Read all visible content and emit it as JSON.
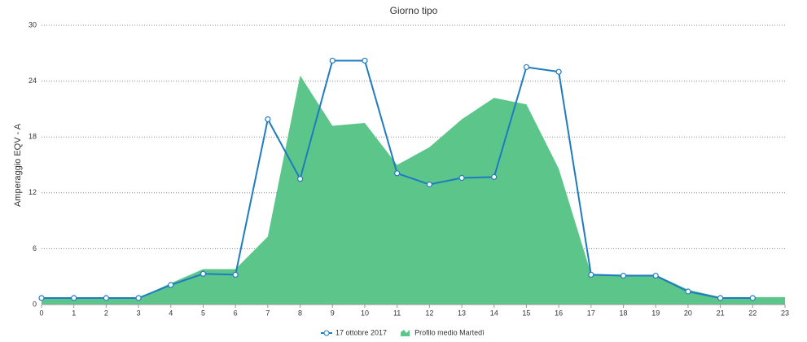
{
  "chart_data": {
    "type": "line-area",
    "title": "Giorno tipo",
    "y_label": "Amperaggio EQV - A",
    "x": [
      0,
      1,
      2,
      3,
      4,
      5,
      6,
      7,
      8,
      9,
      10,
      11,
      12,
      13,
      14,
      15,
      16,
      17,
      18,
      19,
      20,
      21,
      22,
      23
    ],
    "xlim": [
      0,
      23
    ],
    "xticks": [
      0,
      1,
      2,
      3,
      4,
      5,
      6,
      7,
      8,
      9,
      10,
      11,
      12,
      13,
      14,
      15,
      16,
      17,
      18,
      19,
      20,
      21,
      22,
      23
    ],
    "ylim": [
      0,
      30
    ],
    "yticks": [
      0,
      6,
      12,
      18,
      24,
      30
    ],
    "grid": true,
    "legend": "bottom",
    "series": [
      {
        "name": "17 ottobre 2017",
        "kind": "line",
        "color": "#1f7bc0",
        "values": [
          0.7,
          0.7,
          0.7,
          0.7,
          2.1,
          3.3,
          3.2,
          19.9,
          13.5,
          26.2,
          26.2,
          14.1,
          12.9,
          13.6,
          13.7,
          25.5,
          25.0,
          3.2,
          3.1,
          3.1,
          1.4,
          0.7,
          0.7,
          null
        ]
      },
      {
        "name": "Profilo medio Martedì",
        "kind": "area",
        "color": "#5cc68a",
        "values": [
          0.7,
          0.7,
          0.7,
          0.7,
          2.3,
          3.8,
          3.8,
          7.3,
          24.6,
          19.2,
          19.5,
          15.0,
          16.9,
          19.9,
          22.2,
          21.5,
          14.6,
          3.3,
          3.2,
          3.2,
          1.6,
          0.8,
          0.8,
          0.8
        ]
      }
    ]
  }
}
